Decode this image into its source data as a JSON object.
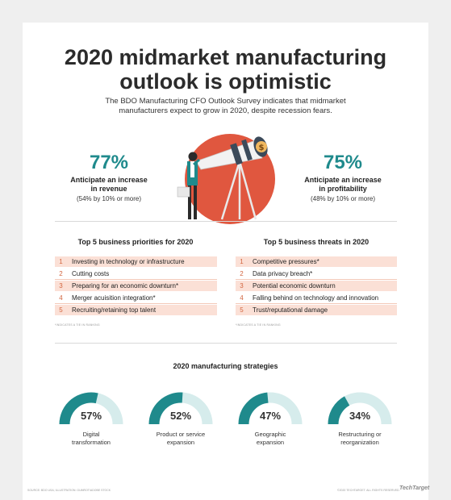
{
  "header": {
    "title_line1": "2020 midmarket manufacturing",
    "title_line2": "outlook is optimistic",
    "subtitle_line1": "The BDO Manufacturing CFO Outlook Survey indicates that midmarket",
    "subtitle_line2": "manufacturers expect to grow in 2020, despite recession fears."
  },
  "stats": {
    "left": {
      "percent": "77%",
      "desc_line1": "Anticipate an increase",
      "desc_line2": "in revenue",
      "sub": "(54% by 10% or more)"
    },
    "right": {
      "percent": "75%",
      "desc_line1": "Anticipate an increase",
      "desc_line2": "in profitability",
      "sub": "(48% by 10% or more)"
    }
  },
  "priorities": {
    "title": "Top 5 business priorities for 2020",
    "items": [
      {
        "num": "1",
        "label": "Investing in technology or infrastructure"
      },
      {
        "num": "2",
        "label": "Cutting costs"
      },
      {
        "num": "3",
        "label": "Preparing for an economic downturn*"
      },
      {
        "num": "4",
        "label": "Merger acuisition integration*"
      },
      {
        "num": "5",
        "label": "Recruiting/retaining top talent"
      }
    ],
    "footnote": "*INDICATES A TIE IN RANKING"
  },
  "threats": {
    "title": "Top 5 business threats in 2020",
    "items": [
      {
        "num": "1",
        "label": "Competitive pressures*"
      },
      {
        "num": "2",
        "label": "Data privacy breach*"
      },
      {
        "num": "3",
        "label": "Potential economic downturn"
      },
      {
        "num": "4",
        "label": "Falling behind on technology and innovation"
      },
      {
        "num": "5",
        "label": "Trust/reputational damage"
      }
    ],
    "footnote": "*INDICATES A TIE IN RANKING"
  },
  "strategies": {
    "title": "2020 manufacturing strategies",
    "items": [
      {
        "percent": "57%",
        "value": 57,
        "label_line1": "Digital",
        "label_line2": "transformation"
      },
      {
        "percent": "52%",
        "value": 52,
        "label_line1": "Product or service",
        "label_line2": "expansion"
      },
      {
        "percent": "47%",
        "value": 47,
        "label_line1": "Geographic",
        "label_line2": "expansion"
      },
      {
        "percent": "34%",
        "value": 34,
        "label_line1": "Restructuring or",
        "label_line2": "reorganization"
      }
    ]
  },
  "footer": {
    "source": "SOURCE: BDO USA; ILLUSTRATION: GUMROT/ADOBE STOCK",
    "copyright": "©2020 TECHTARGET. ALL RIGHTS RESERVED.",
    "brand": "TechTarget"
  },
  "colors": {
    "teal": "#1f8a8c",
    "light_teal": "#d6ecec",
    "coral": "#e0573f",
    "row_shade": "#fbe0d6"
  }
}
